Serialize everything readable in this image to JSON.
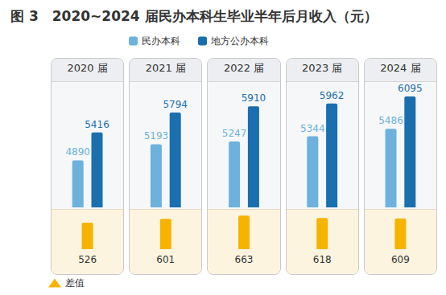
{
  "chart_data": [
    {
      "type": "bar",
      "title": "图 3　2020~2024 届民办本科生毕业半年后月收入（元）",
      "categories": [
        "2020 届",
        "2021 届",
        "2022 届",
        "2023 届",
        "2024 届"
      ],
      "series": [
        {
          "name": "民办本科",
          "color": "#6cb2dc",
          "values": [
            4890,
            5193,
            5247,
            5344,
            5486
          ]
        },
        {
          "name": "地方公办本科",
          "color": "#1a6fae",
          "values": [
            5416,
            5794,
            5910,
            5962,
            6095
          ]
        }
      ],
      "ylim": [
        4000,
        6400
      ],
      "legend": "top",
      "data_labels": true,
      "tick_labels": "x"
    },
    {
      "type": "bar",
      "categories": [
        "2020 届",
        "2021 届",
        "2022 届",
        "2023 届",
        "2024 届"
      ],
      "series": [
        {
          "name": "差值",
          "color": "#f6b400",
          "values": [
            526,
            601,
            663,
            618,
            609
          ]
        }
      ],
      "ylim": [
        0,
        700
      ],
      "legend": "bottom-left",
      "data_labels": true,
      "tick_labels": false
    }
  ]
}
